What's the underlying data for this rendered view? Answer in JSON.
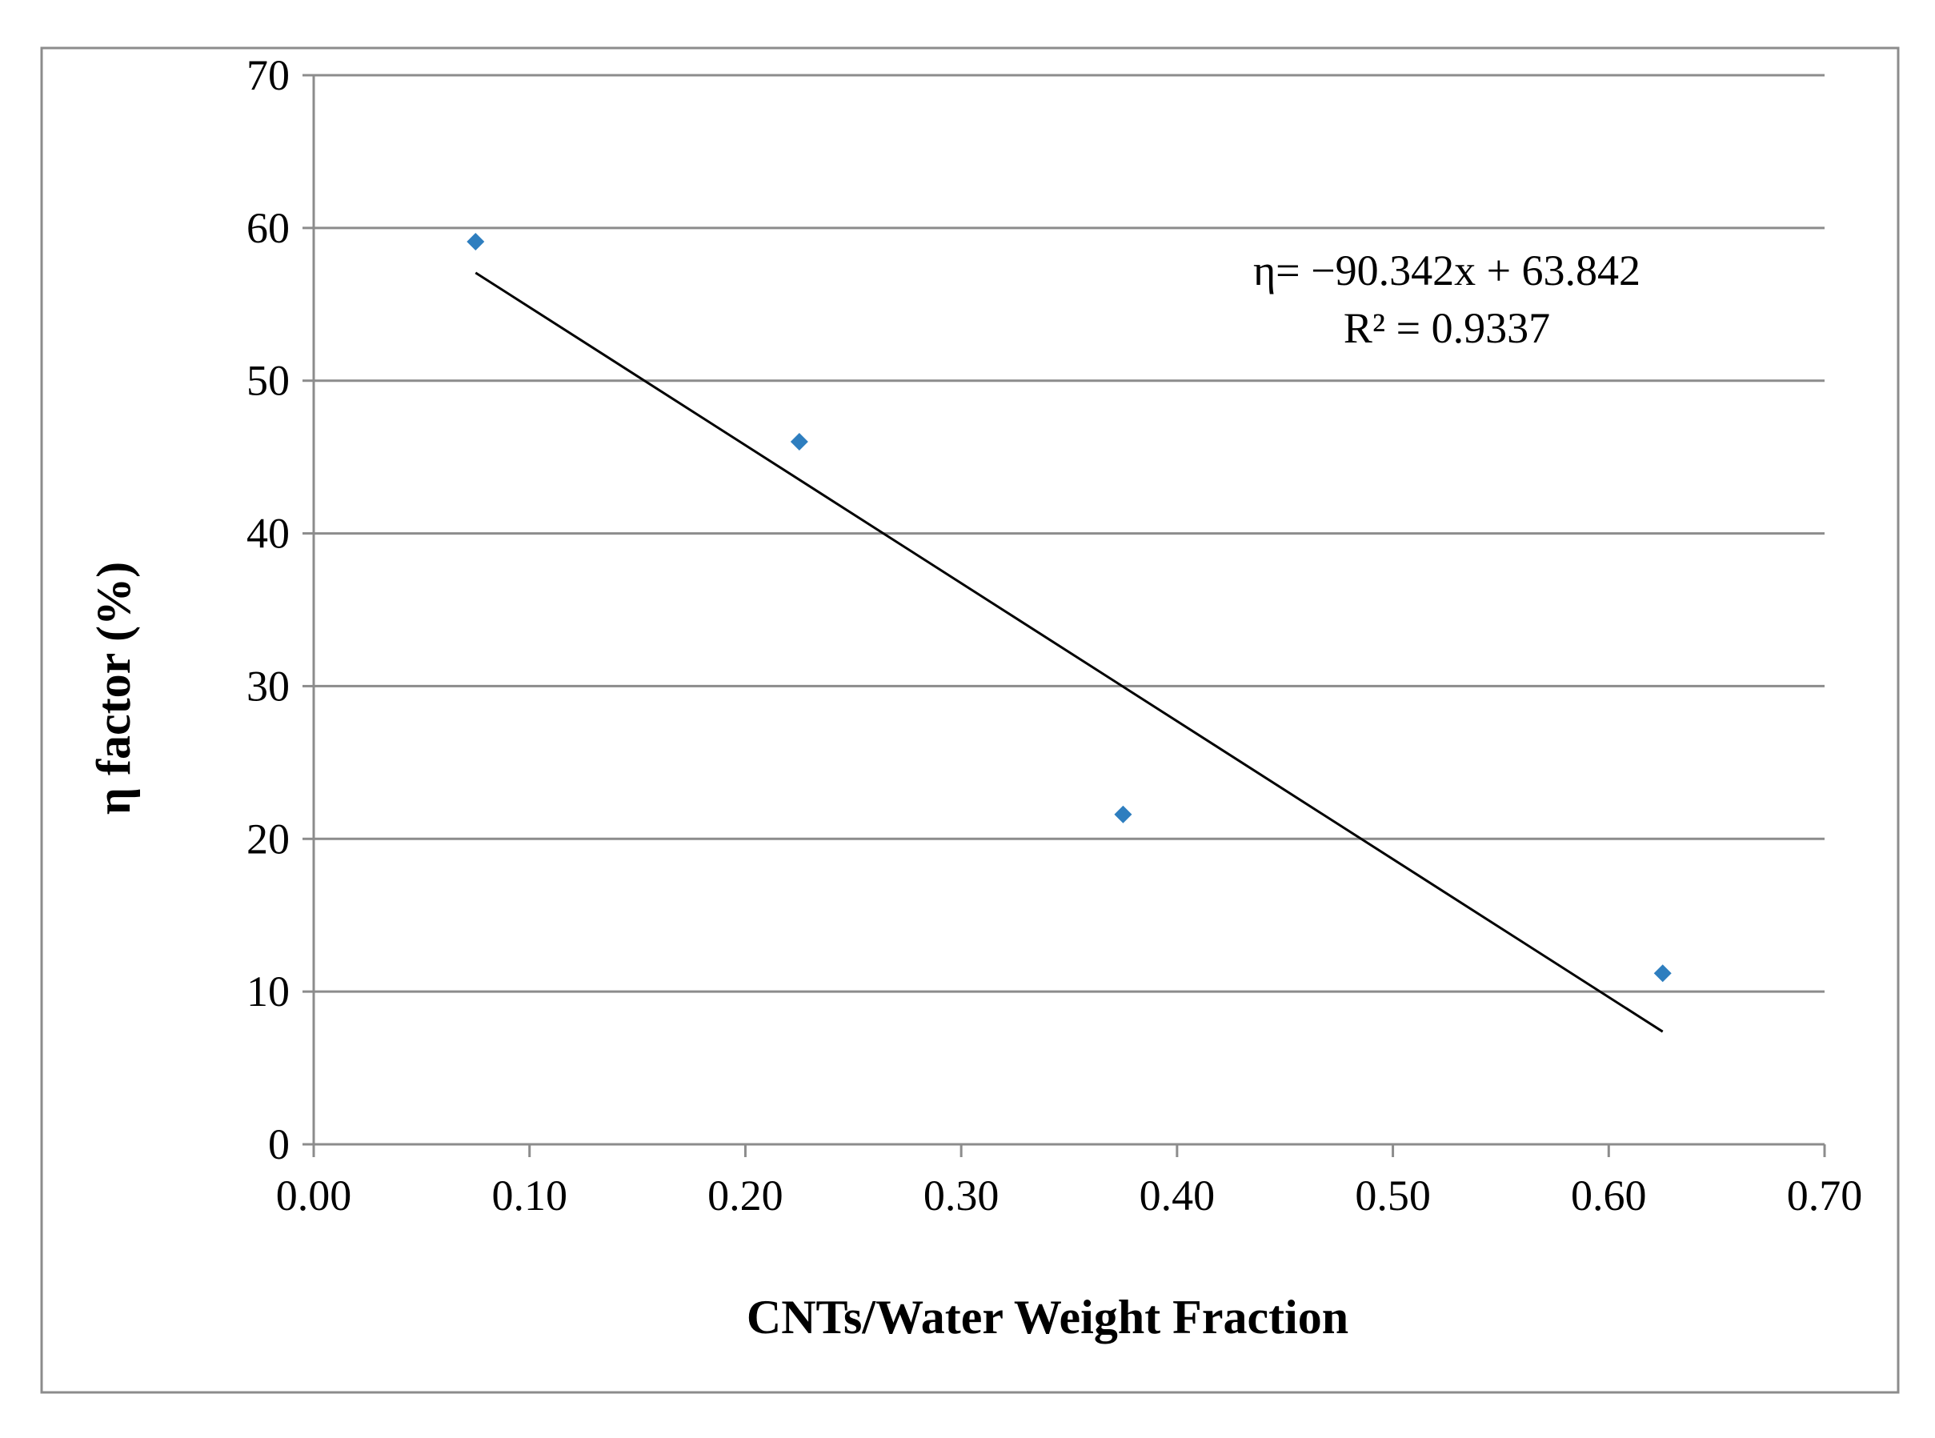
{
  "chart_data": {
    "type": "scatter",
    "title": "",
    "xlabel": "CNTs/Water Weight Fraction",
    "ylabel": "η factor  (%)",
    "xlim": [
      0,
      0.7
    ],
    "ylim": [
      0,
      70
    ],
    "x_ticks": [
      "0.00",
      "0.10",
      "0.20",
      "0.30",
      "0.40",
      "0.50",
      "0.60",
      "0.70"
    ],
    "y_ticks": [
      "0",
      "10",
      "20",
      "30",
      "40",
      "50",
      "60",
      "70"
    ],
    "x_tick_values": [
      0,
      0.1,
      0.2,
      0.3,
      0.4,
      0.5,
      0.6,
      0.7
    ],
    "y_tick_values": [
      0,
      10,
      20,
      30,
      40,
      50,
      60,
      70
    ],
    "grid": "horizontal",
    "series": [
      {
        "name": "η factor",
        "marker": "diamond",
        "x": [
          0.075,
          0.225,
          0.375,
          0.625
        ],
        "values": [
          59.1,
          46.0,
          21.6,
          11.2
        ]
      }
    ],
    "trendline": {
      "type": "linear",
      "slope": -90.342,
      "intercept": 63.842,
      "x_range": [
        0.075,
        0.625
      ]
    },
    "annotations": {
      "equation": "η= −90.342x + 63.842",
      "r_squared": "R² = 0.9337"
    },
    "colors": {
      "marker": "#2E7EBF",
      "trendline": "#000000",
      "gridline": "#8C8C8C",
      "frame": "#8C8C8C"
    }
  }
}
